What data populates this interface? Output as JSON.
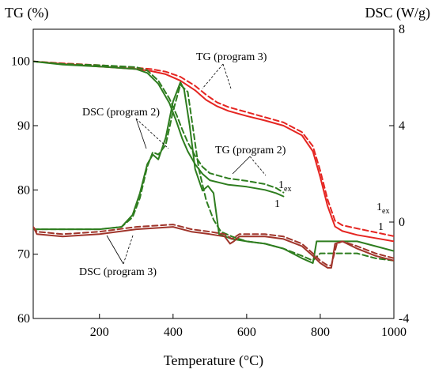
{
  "chart_data": {
    "type": "line",
    "xlabel": "Temperature (°C)",
    "ylabel_left": "TG (%)",
    "ylabel_right": "DSC (W/g)",
    "xlim": [
      20,
      1000
    ],
    "ylim_left": [
      60,
      105
    ],
    "ylim_right": [
      -4,
      8
    ],
    "x_ticks": [
      200,
      400,
      600,
      800,
      1000
    ],
    "y_ticks_left": [
      60,
      70,
      80,
      90,
      100
    ],
    "y_ticks_right": [
      -4,
      0,
      4,
      8
    ],
    "grid": false,
    "colors": {
      "program3_tg": "#e52521",
      "program3_dsc": "#a0352b",
      "program2": "#2e7d1f"
    },
    "series": [
      {
        "axis": "left",
        "color": "#e52521",
        "style": "solid",
        "x": [
          20,
          100,
          200,
          300,
          340,
          380,
          420,
          460,
          490,
          520,
          550,
          600,
          650,
          700,
          750,
          780,
          800,
          820,
          840,
          860,
          900,
          950,
          1000
        ],
        "y": [
          100,
          99.6,
          99.2,
          98.8,
          98.5,
          98.0,
          97.0,
          95.5,
          94.0,
          93.0,
          92.3,
          91.5,
          90.8,
          90.0,
          88.5,
          86.0,
          82.0,
          77.5,
          74.3,
          73.6,
          73.0,
          72.5,
          72.0
        ]
      },
      {
        "axis": "left",
        "color": "#e52521",
        "style": "dashed",
        "x": [
          20,
          100,
          200,
          300,
          340,
          380,
          420,
          460,
          490,
          520,
          550,
          600,
          650,
          700,
          750,
          780,
          800,
          820,
          840,
          860,
          900,
          950,
          1000
        ],
        "y": [
          100,
          99.7,
          99.4,
          99.0,
          98.8,
          98.4,
          97.6,
          96.2,
          94.8,
          93.6,
          92.9,
          92.1,
          91.3,
          90.5,
          89.0,
          86.8,
          83.0,
          78.5,
          75.2,
          74.5,
          74.0,
          73.4,
          72.8
        ]
      },
      {
        "axis": "left",
        "color": "#2e7d1f",
        "style": "solid",
        "x": [
          20,
          100,
          200,
          300,
          330,
          360,
          390,
          410,
          425,
          440,
          460,
          480,
          500,
          550,
          600,
          650,
          680,
          700
        ],
        "y": [
          100,
          99.5,
          99.2,
          98.8,
          98.2,
          96.5,
          93.5,
          90.5,
          88.0,
          86.0,
          84.0,
          82.5,
          81.5,
          80.8,
          80.5,
          80.0,
          79.5,
          79.0
        ]
      },
      {
        "axis": "left",
        "color": "#2e7d1f",
        "style": "dashed",
        "x": [
          20,
          100,
          200,
          300,
          330,
          360,
          390,
          410,
          425,
          440,
          460,
          480,
          500,
          550,
          600,
          650,
          680,
          700
        ],
        "y": [
          100,
          99.6,
          99.4,
          99.1,
          98.6,
          97.0,
          94.2,
          91.6,
          89.4,
          87.4,
          85.3,
          83.6,
          82.6,
          81.8,
          81.4,
          80.9,
          80.3,
          79.6
        ]
      },
      {
        "axis": "right",
        "color": "#2e7d1f",
        "style": "solid",
        "x": [
          20,
          100,
          200,
          260,
          290,
          310,
          330,
          345,
          360,
          380,
          400,
          420,
          430,
          445,
          460,
          480,
          495,
          510,
          525,
          560,
          600,
          650,
          700,
          750,
          780,
          790,
          800,
          850,
          900,
          950,
          1000
        ],
        "y": [
          -0.3,
          -0.3,
          -0.3,
          -0.2,
          0.3,
          1.2,
          2.4,
          2.8,
          2.6,
          3.5,
          5.0,
          5.8,
          5.5,
          4.0,
          2.2,
          1.3,
          1.5,
          1.2,
          -0.5,
          -0.7,
          -0.8,
          -0.9,
          -1.1,
          -1.5,
          -1.7,
          -0.8,
          -0.8,
          -0.8,
          -0.8,
          -1.0,
          -1.2
        ]
      },
      {
        "axis": "right",
        "color": "#2e7d1f",
        "style": "dashed",
        "x": [
          20,
          100,
          200,
          260,
          290,
          310,
          330,
          345,
          360,
          380,
          400,
          420,
          440,
          455,
          470,
          490,
          510,
          530,
          560,
          600,
          650,
          700,
          750,
          780,
          800,
          850,
          900,
          950,
          1000
        ],
        "y": [
          -0.3,
          -0.3,
          -0.3,
          -0.2,
          0.2,
          1.0,
          2.3,
          2.9,
          2.8,
          3.2,
          4.6,
          5.7,
          5.4,
          3.8,
          2.2,
          0.9,
          0.1,
          -0.4,
          -0.6,
          -0.8,
          -0.9,
          -1.1,
          -1.4,
          -1.6,
          -1.3,
          -1.3,
          -1.3,
          -1.5,
          -1.6
        ]
      },
      {
        "axis": "right",
        "color": "#a0352b",
        "style": "solid",
        "x": [
          20,
          30,
          100,
          200,
          300,
          400,
          450,
          500,
          540,
          555,
          565,
          580,
          600,
          650,
          700,
          750,
          780,
          800,
          820,
          830,
          840,
          860,
          900,
          950,
          1000
        ],
        "y": [
          -0.2,
          -0.5,
          -0.6,
          -0.5,
          -0.3,
          -0.2,
          -0.4,
          -0.5,
          -0.6,
          -0.9,
          -0.8,
          -0.6,
          -0.6,
          -0.6,
          -0.7,
          -1.0,
          -1.4,
          -1.7,
          -1.9,
          -1.9,
          -0.9,
          -0.8,
          -1.1,
          -1.4,
          -1.6
        ]
      },
      {
        "axis": "right",
        "color": "#a0352b",
        "style": "dashed",
        "x": [
          20,
          30,
          100,
          200,
          300,
          400,
          450,
          500,
          540,
          560,
          580,
          600,
          650,
          700,
          750,
          780,
          800,
          820,
          830,
          845,
          860,
          900,
          950,
          1000
        ],
        "y": [
          -0.2,
          -0.4,
          -0.5,
          -0.4,
          -0.2,
          -0.1,
          -0.3,
          -0.4,
          -0.5,
          -0.7,
          -0.5,
          -0.5,
          -0.5,
          -0.6,
          -0.9,
          -1.3,
          -1.6,
          -1.8,
          -1.8,
          -0.9,
          -0.8,
          -1.0,
          -1.3,
          -1.5
        ]
      }
    ],
    "annotations": [
      {
        "text": "TG (program 3)"
      },
      {
        "text": "DSC (program 2)"
      },
      {
        "text": "TG (program 2)"
      },
      {
        "text": "DSC (program 3)"
      },
      {
        "text": "1",
        "sub": "ex"
      },
      {
        "text": "1"
      },
      {
        "text": "1",
        "sub": "ex"
      },
      {
        "text": "1"
      }
    ]
  }
}
